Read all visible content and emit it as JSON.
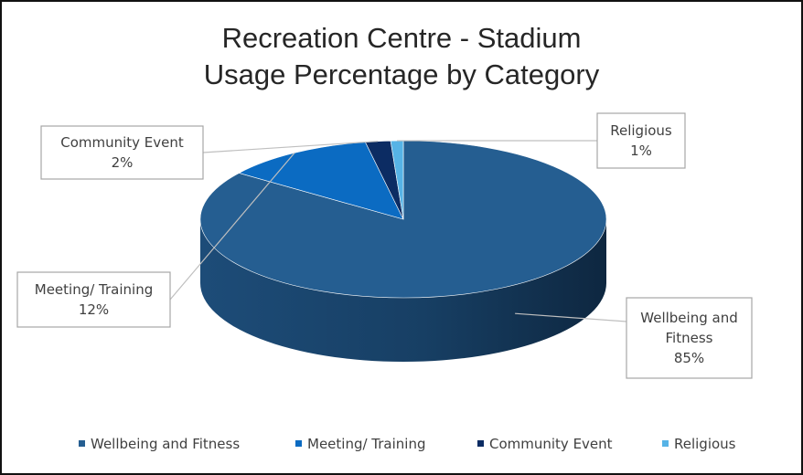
{
  "chart_data": {
    "type": "pie",
    "title": "Recreation Centre - Stadium",
    "subtitle": "Usage Percentage by Category",
    "categories": [
      "Wellbeing and Fitness",
      "Meeting/ Training",
      "Community Event",
      "Religious"
    ],
    "values": [
      85,
      12,
      2,
      1
    ],
    "data_labels": [
      "85%",
      "12%",
      "2%",
      "1%"
    ],
    "legend_position": "bottom",
    "three_d": true,
    "colors": {
      "Wellbeing and Fitness": "#255e91",
      "Meeting/ Training": "#0b6bc2",
      "Community Event": "#0c2c63",
      "Religious": "#56b3e6"
    }
  }
}
